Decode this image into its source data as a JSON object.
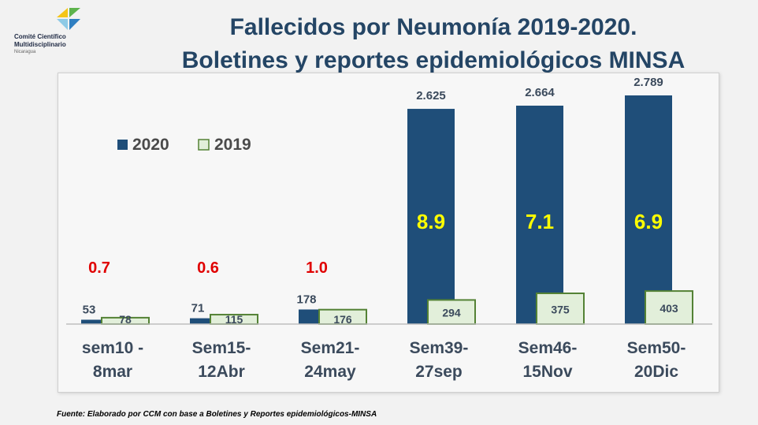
{
  "logo": {
    "line1": "Comité Científico",
    "line2": "Multidisciplinario",
    "line3": "Nicaragua",
    "colors": [
      "#f5c518",
      "#5db34c",
      "#2f7fc1",
      "#8ecae6"
    ]
  },
  "header": {
    "title_line1": "Fallecidos por Neumonía 2019-2020.",
    "title_line2": "Boletines y reportes epidemiológicos MINSA"
  },
  "source": "Fuente:  Elaborado por CCM con base a Boletines y Reportes epidemiológicos-MINSA",
  "chart_data": {
    "type": "bar",
    "categories": [
      [
        "sem10 -",
        "8mar"
      ],
      [
        "Sem15-",
        "12Abr"
      ],
      [
        "Sem21-",
        "24may"
      ],
      [
        "Sem39-",
        "27sep"
      ],
      [
        "Sem46-",
        "15Nov"
      ],
      [
        "Sem50-",
        "20Dic"
      ]
    ],
    "series": [
      {
        "name": "2020",
        "values": [
          53,
          71,
          178,
          2625,
          2664,
          2789
        ],
        "labels": [
          "53",
          "71",
          "178",
          "2.625",
          "2.664",
          "2.789"
        ],
        "color": "#1f4e79"
      },
      {
        "name": "2019",
        "values": [
          78,
          115,
          176,
          294,
          375,
          403
        ],
        "labels": [
          "78",
          "115",
          "176",
          "294",
          "375",
          "403"
        ],
        "color": "#e2efda",
        "stroke": "#548235"
      }
    ],
    "ratios": [
      "0.7",
      "0.6",
      "1.0",
      "8.9",
      "7.1",
      "6.9"
    ],
    "ratio_colors": {
      "outside": "#e00000",
      "inside": "#ffff00"
    },
    "ylim": [
      0,
      2789
    ],
    "grid": false,
    "legend": "top-left"
  }
}
